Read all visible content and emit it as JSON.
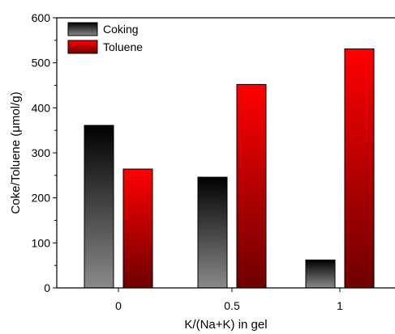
{
  "chart_data": {
    "type": "bar",
    "categories": [
      "0",
      "0.5",
      "1"
    ],
    "series": [
      {
        "name": "Coking",
        "values": [
          361,
          246,
          62
        ],
        "gradient": [
          "#000000",
          "#8a8a8a"
        ]
      },
      {
        "name": "Toluene",
        "values": [
          264,
          452,
          531
        ],
        "gradient": [
          "#ff0000",
          "#6e0000"
        ]
      }
    ],
    "xlabel": "K/(Na+K) in gel",
    "ylabel": "Coke/Toluene (μmol/g)",
    "ylim": [
      0,
      600
    ],
    "yticks": [
      0,
      100,
      200,
      300,
      400,
      500,
      600
    ],
    "grid": false,
    "legend_position": "top-left"
  }
}
